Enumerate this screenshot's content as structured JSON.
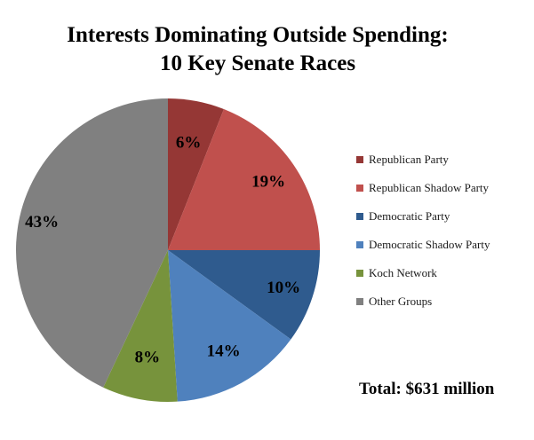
{
  "chart_data": {
    "type": "pie",
    "title_lines": [
      "Interests Dominating Outside Spending:",
      "10 Key Senate Races"
    ],
    "slices": [
      {
        "label": "Republican Party",
        "value": 6,
        "display": "6%",
        "color": "#953735"
      },
      {
        "label": "Republican Shadow Party",
        "value": 19,
        "display": "19%",
        "color": "#C0504D"
      },
      {
        "label": "Democratic Party",
        "value": 10,
        "display": "10%",
        "color": "#2F5B8E"
      },
      {
        "label": "Democratic Shadow Party",
        "value": 14,
        "display": "14%",
        "color": "#4F81BD"
      },
      {
        "label": "Koch Network",
        "value": 8,
        "display": "8%",
        "color": "#77933C"
      },
      {
        "label": "Other Groups",
        "value": 43,
        "display": "43%",
        "color": "#808080"
      }
    ],
    "start_angle": "12 o'clock",
    "direction": "clockwise",
    "legend_placement": "right"
  },
  "annotation": {
    "total_text": "Total: $631 million"
  }
}
